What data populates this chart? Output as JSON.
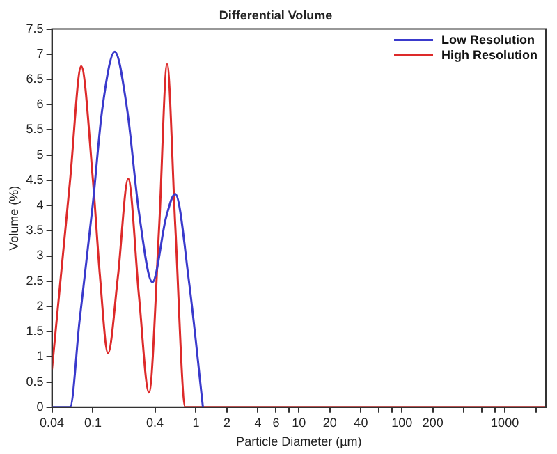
{
  "chart_data": {
    "type": "line",
    "title": "Differential Volume",
    "xlabel": "Particle Diameter (µm)",
    "ylabel": "Volume (%)",
    "log": "x",
    "xlim": [
      0.04,
      2500
    ],
    "ylim": [
      0,
      7.5
    ],
    "xticks": [
      0.04,
      0.1,
      0.4,
      1,
      2,
      4,
      6,
      {
        "value": 8,
        "label": null
      },
      10,
      20,
      40,
      {
        "value": 60,
        "label": null
      },
      {
        "value": 80,
        "label": null
      },
      100,
      200,
      {
        "value": 400,
        "label": null
      },
      {
        "value": 600,
        "label": null
      },
      {
        "value": 800,
        "label": null
      },
      1000,
      {
        "value": 2000,
        "label": null
      }
    ],
    "yticks": [
      0,
      0.5,
      1,
      1.5,
      2,
      2.5,
      3,
      3.5,
      4,
      4.5,
      5,
      5.5,
      6,
      6.5,
      7,
      7.5
    ],
    "grid": false,
    "legend": "top right",
    "marker": "none",
    "line_style": "solid",
    "series": [
      {
        "name": "Low Resolution",
        "color": "#3a3acc",
        "x": [
          0.04,
          0.06,
          0.074,
          0.1,
          0.123,
          0.163,
          0.215,
          0.28,
          0.378,
          0.514,
          0.63,
          0.86,
          1.17
        ],
        "values": [
          0,
          0,
          1.7,
          4.05,
          5.9,
          7.05,
          5.9,
          3.86,
          2.48,
          3.77,
          4.23,
          2.46,
          0
        ]
      },
      {
        "name": "High Resolution",
        "color": "#dd2a2a",
        "x": [
          0.04,
          0.06,
          0.077,
          0.1,
          0.117,
          0.14,
          0.175,
          0.22,
          0.28,
          0.35,
          0.44,
          0.525,
          0.63,
          0.79,
          2500
        ],
        "values": [
          0.75,
          4.5,
          6.76,
          4.5,
          2.6,
          1.07,
          2.6,
          4.53,
          2.2,
          0.29,
          3.6,
          6.8,
          3.6,
          0,
          0
        ]
      }
    ]
  }
}
